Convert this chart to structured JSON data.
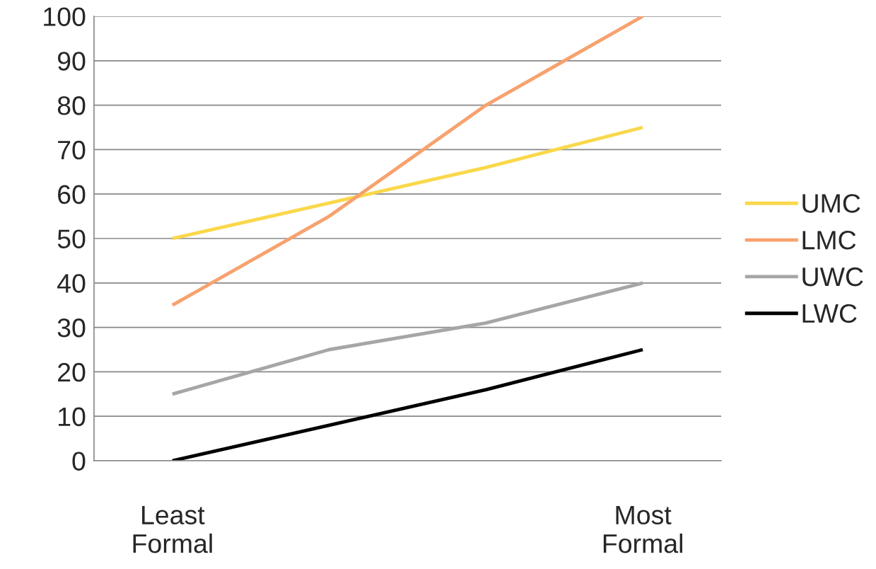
{
  "chart_data": {
    "type": "line",
    "categories": [
      "Least\nFormal",
      null,
      null,
      "Most\nFormal"
    ],
    "series": [
      {
        "name": "UMC",
        "color": "#f9d84a",
        "values": [
          50,
          58,
          66,
          75
        ]
      },
      {
        "name": "LMC",
        "color": "#f7a26e",
        "values": [
          35,
          55,
          80,
          100
        ]
      },
      {
        "name": "UWC",
        "color": "#a6a6a6",
        "values": [
          15,
          25,
          31,
          40
        ]
      },
      {
        "name": "LWC",
        "color": "#000000",
        "values": [
          0,
          8,
          16,
          25
        ]
      }
    ],
    "ylim": [
      0,
      100
    ],
    "yticks": [
      0,
      10,
      20,
      30,
      40,
      50,
      60,
      70,
      80,
      90,
      100
    ],
    "grid": "y",
    "legend": "right",
    "marker": "none",
    "line_style": "solid"
  }
}
